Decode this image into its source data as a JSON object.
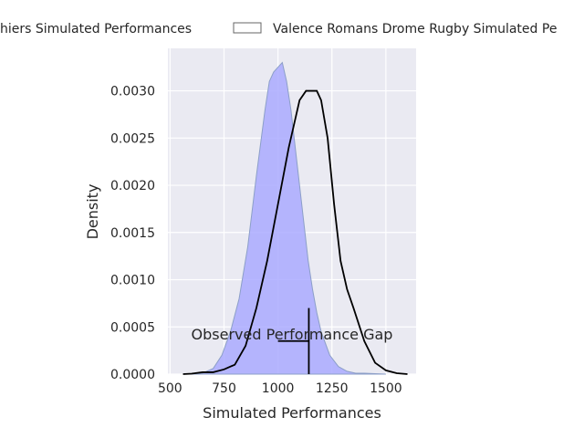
{
  "chart_data": {
    "type": "area",
    "xlabel": "Simulated Performances",
    "ylabel": "Density",
    "xlim": [
      490,
      1640
    ],
    "ylim": [
      0,
      0.00345
    ],
    "x_ticks": [
      500,
      750,
      1000,
      1250,
      1500
    ],
    "x_tick_labels": [
      "500",
      "750",
      "1000",
      "1250",
      "1500"
    ],
    "y_ticks": [
      0,
      0.0005,
      0.001,
      0.0015,
      0.002,
      0.0025,
      0.003
    ],
    "y_tick_labels": [
      "0.0000",
      "0.0005",
      "0.0010",
      "0.0015",
      "0.0020",
      "0.0025",
      "0.0030"
    ],
    "grid": true,
    "legend_position": "top",
    "series": [
      {
        "name": "Stade Niort Rugby Souchiers Simulated Performances",
        "legend_visible_text": "hiers Simulated Performances",
        "style": "filled",
        "color": "#aaaaff",
        "edge_color": "#8c9fc8",
        "x": [
          560,
          650,
          700,
          740,
          780,
          820,
          860,
          900,
          940,
          960,
          980,
          1000,
          1020,
          1040,
          1060,
          1080,
          1100,
          1120,
          1140,
          1160,
          1180,
          1200,
          1240,
          1280,
          1320,
          1360,
          1400,
          1450,
          1500
        ],
        "values": [
          0.0,
          1e-05,
          6e-05,
          0.0002,
          0.00045,
          0.0008,
          0.00135,
          0.0021,
          0.0028,
          0.0031,
          0.0032,
          0.00325,
          0.0033,
          0.0031,
          0.0028,
          0.0024,
          0.002,
          0.0016,
          0.0012,
          0.0009,
          0.00065,
          0.00045,
          0.0002,
          8e-05,
          3e-05,
          1e-05,
          1e-05,
          5e-06,
          0.0
        ]
      },
      {
        "name": "Valence Romans Drome Rugby Simulated Performances",
        "legend_visible_text": "Valence Romans Drome Rugby Simulated Pe",
        "style": "line",
        "color": "#000000",
        "x": [
          560,
          600,
          650,
          700,
          750,
          800,
          850,
          900,
          950,
          1000,
          1050,
          1100,
          1130,
          1160,
          1180,
          1200,
          1230,
          1260,
          1290,
          1320,
          1350,
          1400,
          1450,
          1500,
          1550,
          1600
        ],
        "values": [
          0.0,
          5e-06,
          2e-05,
          2e-05,
          5e-05,
          0.0001,
          0.0003,
          0.0007,
          0.0012,
          0.0018,
          0.0024,
          0.0029,
          0.003,
          0.003,
          0.003,
          0.0029,
          0.0025,
          0.0018,
          0.0012,
          0.0009,
          0.0007,
          0.00035,
          0.00012,
          4e-05,
          1e-05,
          0.0
        ]
      }
    ],
    "annotation": {
      "text": "Observed Performance Gap",
      "observed_x": 1143,
      "observed_y_top": 0.0007,
      "gap_x_start": 1000,
      "gap_x_end": 1143,
      "gap_y": 0.00035
    }
  }
}
